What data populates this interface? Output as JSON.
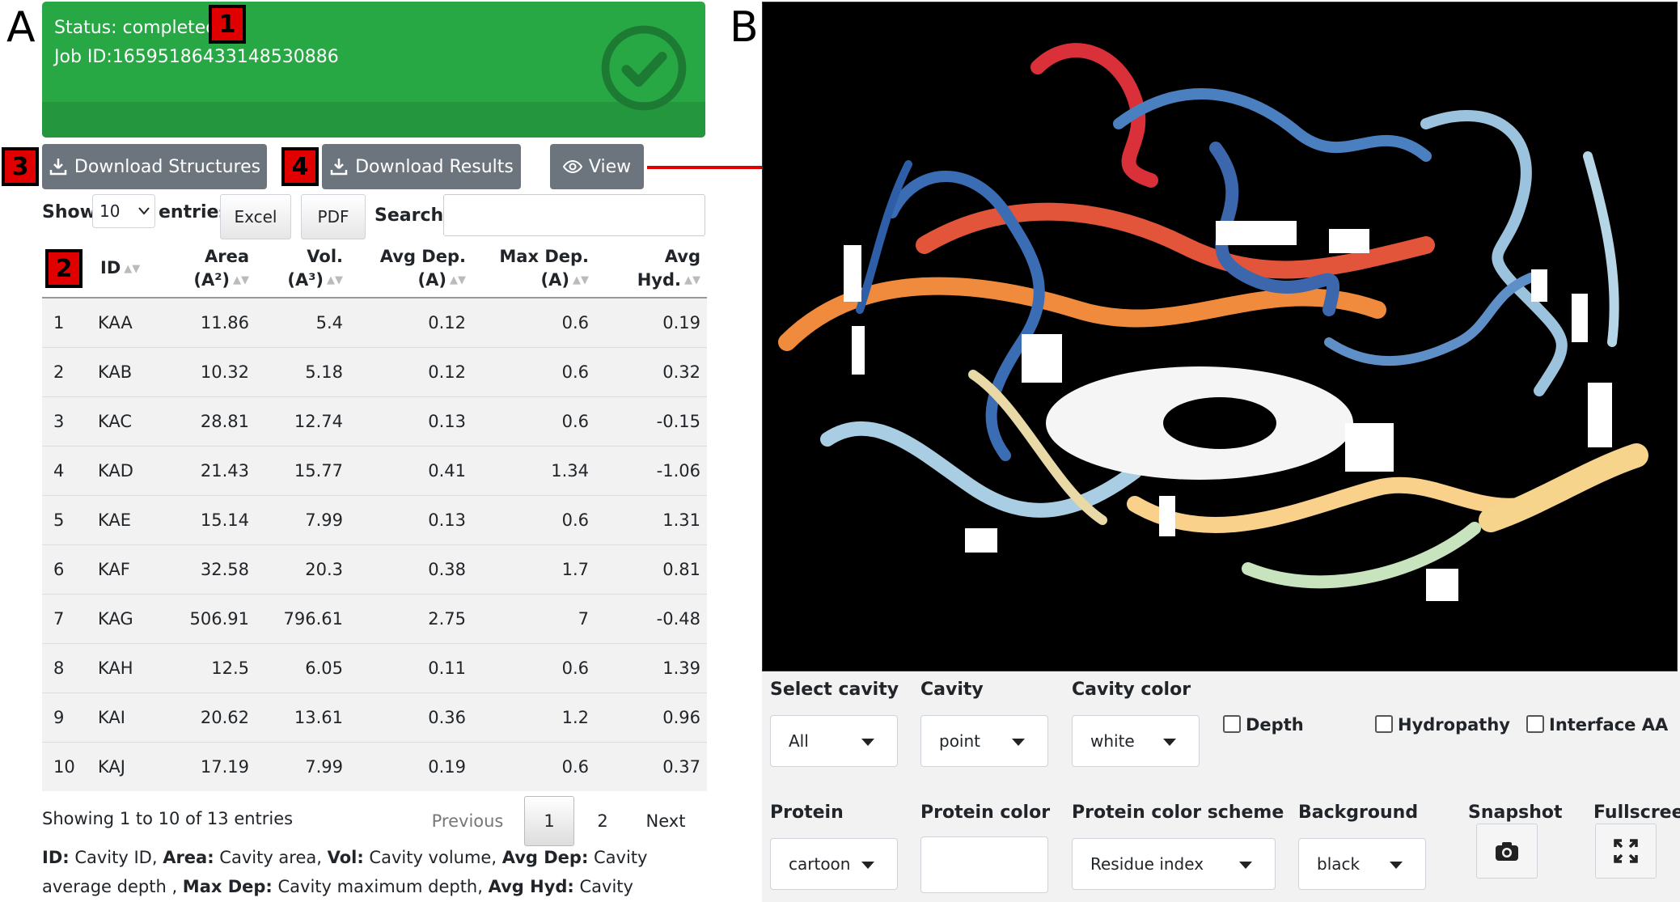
{
  "panels": {
    "left": "A",
    "right": "B"
  },
  "badges": {
    "status": "1",
    "table": "2",
    "download_structures": "3",
    "download_results": "4"
  },
  "status": {
    "text": "Status: completed",
    "job_id": "Job ID:16595186433148530886",
    "color": "#28a745"
  },
  "buttons": {
    "download_structures": "Download Structures",
    "download_results": "Download Results",
    "view": "View"
  },
  "table_controls": {
    "show_label": "Show",
    "entries_value": "10",
    "entries_label": "entries",
    "excel": "Excel",
    "pdf": "PDF",
    "search_label": "Search:",
    "search_value": ""
  },
  "table": {
    "headers": [
      {
        "line1": "ID",
        "line2": ""
      },
      {
        "line1": "Area",
        "line2": "(A²)"
      },
      {
        "line1": "Vol.",
        "line2": "(A³)"
      },
      {
        "line1": "Avg Dep.",
        "line2": "(A)"
      },
      {
        "line1": "Max Dep.",
        "line2": "(A)"
      },
      {
        "line1": "Avg",
        "line2": "Hyd."
      }
    ],
    "rows": [
      [
        "1",
        "KAA",
        "11.86",
        "5.4",
        "0.12",
        "0.6",
        "0.19"
      ],
      [
        "2",
        "KAB",
        "10.32",
        "5.18",
        "0.12",
        "0.6",
        "0.32"
      ],
      [
        "3",
        "KAC",
        "28.81",
        "12.74",
        "0.13",
        "0.6",
        "-0.15"
      ],
      [
        "4",
        "KAD",
        "21.43",
        "15.77",
        "0.41",
        "1.34",
        "-1.06"
      ],
      [
        "5",
        "KAE",
        "15.14",
        "7.99",
        "0.13",
        "0.6",
        "1.31"
      ],
      [
        "6",
        "KAF",
        "32.58",
        "20.3",
        "0.38",
        "1.7",
        "0.81"
      ],
      [
        "7",
        "KAG",
        "506.91",
        "796.61",
        "2.75",
        "7",
        "-0.48"
      ],
      [
        "8",
        "KAH",
        "12.5",
        "6.05",
        "0.11",
        "0.6",
        "1.39"
      ],
      [
        "9",
        "KAI",
        "20.62",
        "13.61",
        "0.36",
        "1.2",
        "0.96"
      ],
      [
        "10",
        "KAJ",
        "17.19",
        "7.99",
        "0.19",
        "0.6",
        "0.37"
      ]
    ]
  },
  "pagination": {
    "info": "Showing 1 to 10 of 13 entries",
    "previous": "Previous",
    "page1": "1",
    "page2": "2",
    "next": "Next"
  },
  "legend": {
    "id_key": "ID:",
    "id_val": " Cavity ID, ",
    "area_key": "Area:",
    "area_val": " Cavity area, ",
    "vol_key": "Vol:",
    "vol_val": " Cavity volume, ",
    "avgdep_key": "Avg Dep:",
    "avgdep_val": " Cavity average depth , ",
    "maxdep_key": "Max Dep:",
    "maxdep_val": " Cavity maximum depth, ",
    "avghyd_key": "Avg Hyd:",
    "avghyd_val": " Cavity average hydropathy."
  },
  "viewer_controls": {
    "select_cavity_label": "Select cavity",
    "select_cavity_value": "All",
    "cavity_label": "Cavity",
    "cavity_value": "point",
    "cavity_color_label": "Cavity color",
    "cavity_color_value": "white",
    "depth_label": "Depth",
    "hydropathy_label": "Hydropathy",
    "interface_label": "Interface AA",
    "protein_label": "Protein",
    "protein_value": "cartoon",
    "protein_color_label": "Protein color",
    "protein_color_value": "",
    "scheme_label": "Protein color scheme",
    "scheme_value": "Residue index",
    "background_label": "Background",
    "background_value": "black",
    "snapshot_label": "Snapshot",
    "fullscreen_label": "Fullscreen"
  }
}
